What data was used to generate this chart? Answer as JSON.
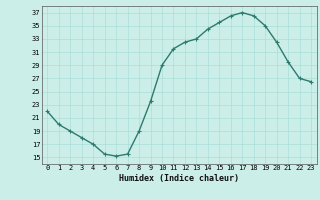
{
  "x": [
    0,
    1,
    2,
    3,
    4,
    5,
    6,
    7,
    8,
    9,
    10,
    11,
    12,
    13,
    14,
    15,
    16,
    17,
    18,
    19,
    20,
    21,
    22,
    23
  ],
  "y": [
    22,
    20,
    19,
    18,
    17,
    15.5,
    15.2,
    15.5,
    19,
    23.5,
    29,
    31.5,
    32.5,
    33,
    34.5,
    35.5,
    36.5,
    37,
    36.5,
    35,
    32.5,
    29.5,
    27,
    26.5
  ],
  "line_color": "#2d7a6e",
  "marker_color": "#2d7a6e",
  "bg_color": "#cceee8",
  "grid_color": "#aaddd8",
  "xlabel": "Humidex (Indice chaleur)",
  "xlabel_fontsize": 6,
  "ylim": [
    14,
    38
  ],
  "xlim": [
    -0.5,
    23.5
  ],
  "yticks": [
    15,
    17,
    19,
    21,
    23,
    25,
    27,
    29,
    31,
    33,
    35,
    37
  ],
  "xticks": [
    0,
    1,
    2,
    3,
    4,
    5,
    6,
    7,
    8,
    9,
    10,
    11,
    12,
    13,
    14,
    15,
    16,
    17,
    18,
    19,
    20,
    21,
    22,
    23
  ],
  "tick_fontsize": 5,
  "line_width": 1.0,
  "marker_size": 3.0
}
